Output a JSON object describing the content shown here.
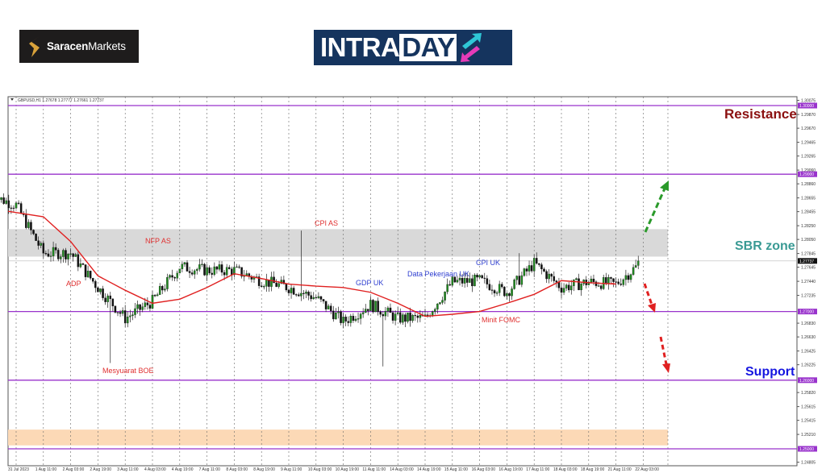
{
  "logos": {
    "saracen": {
      "bold": "Saracen",
      "regular": "Markets"
    },
    "intraday": {
      "part1": "INTRA",
      "part2": "DAY"
    }
  },
  "chart_header": "GBPUSD,H1  1.27678 1.27777 1.27661 1.27737",
  "chart_data": {
    "type": "candlestick",
    "symbol": "GBPUSD",
    "timeframe": "H1",
    "ylim": [
      1.24805,
      1.30075
    ],
    "y_ticks": [
      "1.30075",
      "1.29870",
      "1.29670",
      "1.29465",
      "1.29265",
      "1.29060",
      "1.28860",
      "1.28655",
      "1.28455",
      "1.28250",
      "1.28050",
      "1.27845",
      "1.27645",
      "1.27440",
      "1.27235",
      "1.26830",
      "1.26630",
      "1.26425",
      "1.26225",
      "1.25820",
      "1.25615",
      "1.25415",
      "1.25210",
      "1.24805"
    ],
    "x_ticks": [
      "31 Jul 2023",
      "1 Aug 11:00",
      "2 Aug 03:00",
      "2 Aug 19:00",
      "3 Aug 11:00",
      "4 Aug 03:00",
      "4 Aug 19:00",
      "7 Aug 11:00",
      "8 Aug 03:00",
      "8 Aug 19:00",
      "9 Aug 11:00",
      "10 Aug 03:00",
      "10 Aug 19:00",
      "11 Aug 11:00",
      "14 Aug 03:00",
      "14 Aug 19:00",
      "15 Aug 11:00",
      "16 Aug 03:00",
      "16 Aug 19:00",
      "17 Aug 11:00",
      "18 Aug 03:00",
      "18 Aug 19:00",
      "21 Aug 11:00",
      "22 Aug 03:00"
    ],
    "close_at_ticks": [
      1.2855,
      1.2785,
      1.2785,
      1.2735,
      1.269,
      1.2715,
      1.2765,
      1.276,
      1.276,
      1.2745,
      1.2735,
      1.272,
      1.2685,
      1.271,
      1.269,
      1.269,
      1.2743,
      1.2745,
      1.2728,
      1.277,
      1.2735,
      1.2743,
      1.274,
      1.27737
    ],
    "moving_average_at_ticks": [
      1.2846,
      1.2838,
      1.2802,
      1.2752,
      1.2731,
      1.2712,
      1.2718,
      1.2735,
      1.2755,
      1.2748,
      1.274,
      1.2737,
      1.2735,
      1.2728,
      1.2712,
      1.2693,
      1.2696,
      1.27,
      1.2712,
      1.2725,
      1.2745,
      1.2742,
      1.274,
      1.2741
    ],
    "notable_extremes": [
      {
        "near_tick": "3 Aug 11:00",
        "low": 1.2625
      },
      {
        "near_tick": "10 Aug 03:00",
        "high": 1.2818
      },
      {
        "near_tick": "14 Aug 03:00",
        "low": 1.262
      },
      {
        "near_tick": "17 Aug 11:00",
        "high": 1.2785
      }
    ],
    "last_price": "1.27737",
    "horizontal_levels": [
      {
        "price": 1.3,
        "label": "1.30000"
      },
      {
        "price": 1.29,
        "label": "1.29000"
      },
      {
        "price": 1.27,
        "label": "1.27000"
      },
      {
        "price": 1.26,
        "label": "1.26000"
      },
      {
        "price": 1.25,
        "label": "1.25000"
      }
    ],
    "zones": [
      {
        "name": "SBR zone",
        "from": 1.278,
        "to": 1.282,
        "color": "#d9d9d9"
      },
      {
        "from": 1.2505,
        "to": 1.2528,
        "color": "#fcd9b6"
      }
    ],
    "annotations": [
      {
        "text": "ADP",
        "color": "#e03030"
      },
      {
        "text": "NFP AS",
        "color": "#e03030"
      },
      {
        "text": "Mesyuarat BOE",
        "color": "#e03030"
      },
      {
        "text": "CPI AS",
        "color": "#e03030"
      },
      {
        "text": "GDP UK",
        "color": "#2f3fd0"
      },
      {
        "text": "Data Pekerjaan UK",
        "color": "#2f3fd0"
      },
      {
        "text": "CPI UK",
        "color": "#2f3fd0"
      },
      {
        "text": "Minit FOMC",
        "color": "#e03030"
      }
    ],
    "level_labels": [
      {
        "text": "Resistance",
        "color": "#8b1010"
      },
      {
        "text": "SBR zone",
        "color": "#3a9a94"
      },
      {
        "text": "Support",
        "color": "#1515e0"
      }
    ],
    "colors": {
      "level_line": "#9933cc",
      "ma_line": "#e02020",
      "up_candle": "#1f8a1f",
      "down_candle": "#111111",
      "bullish_arrow": "#2a9a2a",
      "bearish_arrow": "#e02020"
    }
  }
}
